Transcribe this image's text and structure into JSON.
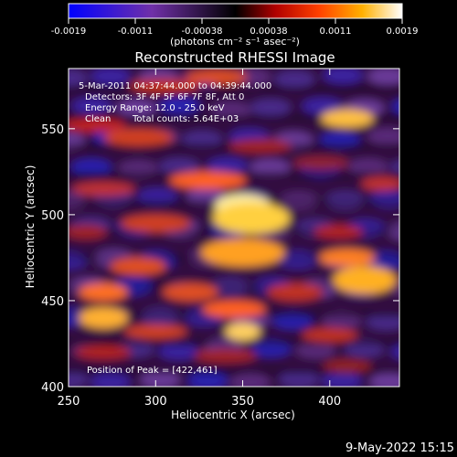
{
  "chart_data": {
    "type": "heatmap",
    "title": "Reconstructed RHESSI Image",
    "xlabel": "Heliocentric X (arcsec)",
    "ylabel": "Heliocentric Y (arcsec)",
    "xlim": [
      250,
      440
    ],
    "ylim": [
      400,
      585
    ],
    "xticks": [
      250,
      300,
      350,
      400
    ],
    "yticks": [
      400,
      450,
      500,
      550
    ],
    "colorbar": {
      "label": "(photons cm⁻² s⁻¹ asec⁻²)",
      "range": [
        -0.0019,
        0.0019
      ],
      "ticks": [
        "-0.0019",
        "-0.0011",
        "-0.00038",
        "0.00038",
        "0.0011",
        "0.0019"
      ],
      "colors": [
        "#0000ff",
        "#7030a8",
        "#000000",
        "#b00000",
        "#ff4000",
        "#ffb000",
        "#ffffff"
      ]
    },
    "annotations": [
      "5-Mar-2011 04:37:44.000 to 04:39:44.000",
      "Detectors: 3F 4F 5F 6F 7F 8F, Att 0",
      "Energy Range: 12.0 - 25.0 keV",
      "Clean",
      "Total counts: 5.64E+03",
      "Position of Peak = [422,461]"
    ],
    "peak": {
      "x": 422,
      "y": 461
    }
  },
  "footer": {
    "timestamp": "9-May-2022 15:15"
  }
}
